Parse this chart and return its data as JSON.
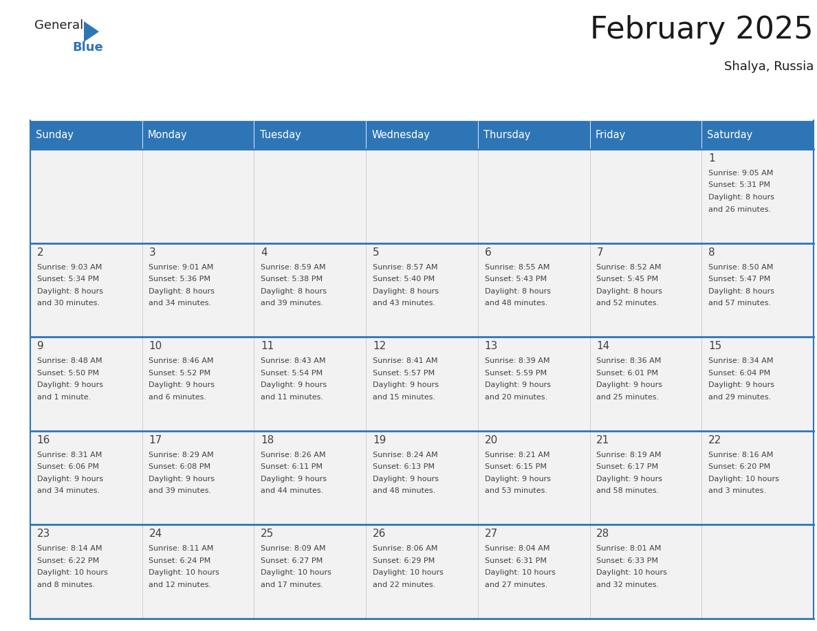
{
  "title": "February 2025",
  "subtitle": "Shalya, Russia",
  "header_bg": "#2E75B6",
  "header_text_color": "#FFFFFF",
  "cell_bg": "#F2F2F2",
  "cell_bg_white": "#FFFFFF",
  "border_color": "#2E75B6",
  "row_divider_color": "#2E75B6",
  "title_color": "#1a1a1a",
  "text_color": "#404040",
  "days_of_week": [
    "Sunday",
    "Monday",
    "Tuesday",
    "Wednesday",
    "Thursday",
    "Friday",
    "Saturday"
  ],
  "calendar_data": [
    [
      null,
      null,
      null,
      null,
      null,
      null,
      {
        "day": "1",
        "sunrise": "9:05 AM",
        "sunset": "5:31 PM",
        "daylight": "8 hours\nand 26 minutes."
      }
    ],
    [
      {
        "day": "2",
        "sunrise": "9:03 AM",
        "sunset": "5:34 PM",
        "daylight": "8 hours\nand 30 minutes."
      },
      {
        "day": "3",
        "sunrise": "9:01 AM",
        "sunset": "5:36 PM",
        "daylight": "8 hours\nand 34 minutes."
      },
      {
        "day": "4",
        "sunrise": "8:59 AM",
        "sunset": "5:38 PM",
        "daylight": "8 hours\nand 39 minutes."
      },
      {
        "day": "5",
        "sunrise": "8:57 AM",
        "sunset": "5:40 PM",
        "daylight": "8 hours\nand 43 minutes."
      },
      {
        "day": "6",
        "sunrise": "8:55 AM",
        "sunset": "5:43 PM",
        "daylight": "8 hours\nand 48 minutes."
      },
      {
        "day": "7",
        "sunrise": "8:52 AM",
        "sunset": "5:45 PM",
        "daylight": "8 hours\nand 52 minutes."
      },
      {
        "day": "8",
        "sunrise": "8:50 AM",
        "sunset": "5:47 PM",
        "daylight": "8 hours\nand 57 minutes."
      }
    ],
    [
      {
        "day": "9",
        "sunrise": "8:48 AM",
        "sunset": "5:50 PM",
        "daylight": "9 hours\nand 1 minute."
      },
      {
        "day": "10",
        "sunrise": "8:46 AM",
        "sunset": "5:52 PM",
        "daylight": "9 hours\nand 6 minutes."
      },
      {
        "day": "11",
        "sunrise": "8:43 AM",
        "sunset": "5:54 PM",
        "daylight": "9 hours\nand 11 minutes."
      },
      {
        "day": "12",
        "sunrise": "8:41 AM",
        "sunset": "5:57 PM",
        "daylight": "9 hours\nand 15 minutes."
      },
      {
        "day": "13",
        "sunrise": "8:39 AM",
        "sunset": "5:59 PM",
        "daylight": "9 hours\nand 20 minutes."
      },
      {
        "day": "14",
        "sunrise": "8:36 AM",
        "sunset": "6:01 PM",
        "daylight": "9 hours\nand 25 minutes."
      },
      {
        "day": "15",
        "sunrise": "8:34 AM",
        "sunset": "6:04 PM",
        "daylight": "9 hours\nand 29 minutes."
      }
    ],
    [
      {
        "day": "16",
        "sunrise": "8:31 AM",
        "sunset": "6:06 PM",
        "daylight": "9 hours\nand 34 minutes."
      },
      {
        "day": "17",
        "sunrise": "8:29 AM",
        "sunset": "6:08 PM",
        "daylight": "9 hours\nand 39 minutes."
      },
      {
        "day": "18",
        "sunrise": "8:26 AM",
        "sunset": "6:11 PM",
        "daylight": "9 hours\nand 44 minutes."
      },
      {
        "day": "19",
        "sunrise": "8:24 AM",
        "sunset": "6:13 PM",
        "daylight": "9 hours\nand 48 minutes."
      },
      {
        "day": "20",
        "sunrise": "8:21 AM",
        "sunset": "6:15 PM",
        "daylight": "9 hours\nand 53 minutes."
      },
      {
        "day": "21",
        "sunrise": "8:19 AM",
        "sunset": "6:17 PM",
        "daylight": "9 hours\nand 58 minutes."
      },
      {
        "day": "22",
        "sunrise": "8:16 AM",
        "sunset": "6:20 PM",
        "daylight": "10 hours\nand 3 minutes."
      }
    ],
    [
      {
        "day": "23",
        "sunrise": "8:14 AM",
        "sunset": "6:22 PM",
        "daylight": "10 hours\nand 8 minutes."
      },
      {
        "day": "24",
        "sunrise": "8:11 AM",
        "sunset": "6:24 PM",
        "daylight": "10 hours\nand 12 minutes."
      },
      {
        "day": "25",
        "sunrise": "8:09 AM",
        "sunset": "6:27 PM",
        "daylight": "10 hours\nand 17 minutes."
      },
      {
        "day": "26",
        "sunrise": "8:06 AM",
        "sunset": "6:29 PM",
        "daylight": "10 hours\nand 22 minutes."
      },
      {
        "day": "27",
        "sunrise": "8:04 AM",
        "sunset": "6:31 PM",
        "daylight": "10 hours\nand 27 minutes."
      },
      {
        "day": "28",
        "sunrise": "8:01 AM",
        "sunset": "6:33 PM",
        "daylight": "10 hours\nand 32 minutes."
      },
      null
    ]
  ],
  "logo_general_color": "#222222",
  "logo_blue_color": "#2E75B6",
  "logo_triangle_color": "#2E75B6",
  "figwidth": 11.88,
  "figheight": 9.18,
  "dpi": 100
}
